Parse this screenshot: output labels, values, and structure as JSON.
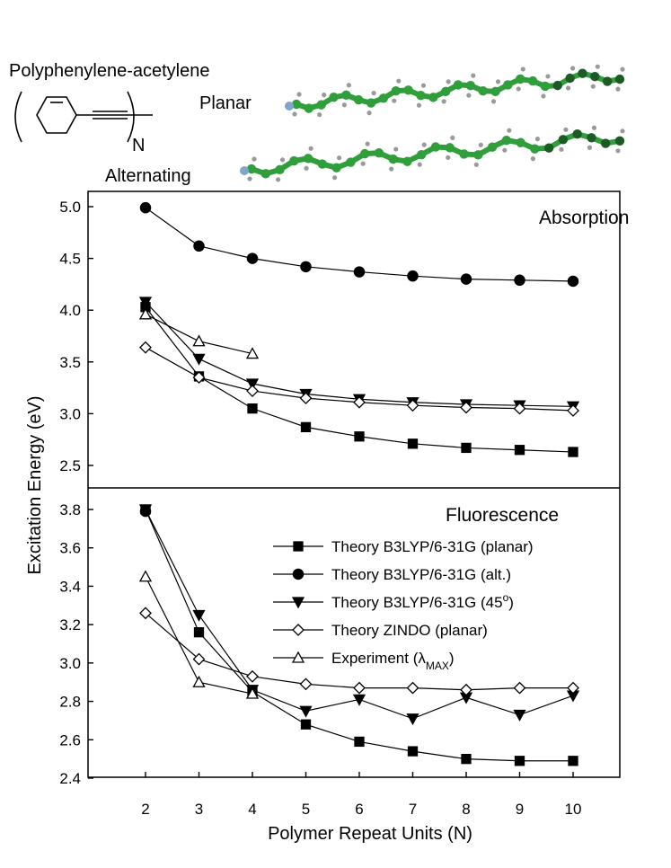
{
  "header": {
    "polymer_name": "Polyphenylene-acetylene",
    "repeat_label": "N",
    "planar_label": "Planar",
    "alternating_label": "Alternating"
  },
  "colors": {
    "molecule_green": "#2f9e3b",
    "molecule_dark_green": "#1d5a26",
    "hydrogen_grey": "#9a9a9a",
    "end_group_blue": "#7fa6c9"
  },
  "chart_data": [
    {
      "type": "line",
      "title": "Absorption",
      "xlabel": "Polymer Repeat Units (N)",
      "ylabel": "Excitation Energy (eV)",
      "xlim": [
        1.1,
        10.8
      ],
      "ylim": [
        2.3,
        5.1
      ],
      "yticks": [
        "2.5",
        "3.0",
        "3.5",
        "4.0",
        "4.5",
        "5.0"
      ],
      "grid": false,
      "series": [
        {
          "name": "Theory B3LYP/6-31G (planar)",
          "marker": "square-filled",
          "x": [
            2,
            3,
            4,
            5,
            6,
            7,
            8,
            9,
            10
          ],
          "y": [
            4.03,
            3.36,
            3.05,
            2.87,
            2.78,
            2.71,
            2.67,
            2.65,
            2.63
          ]
        },
        {
          "name": "Theory B3LYP/6-31G (alt.)",
          "marker": "circle-filled",
          "x": [
            2,
            3,
            4,
            5,
            6,
            7,
            8,
            9,
            10
          ],
          "y": [
            4.99,
            4.62,
            4.5,
            4.42,
            4.37,
            4.33,
            4.3,
            4.29,
            4.28
          ]
        },
        {
          "name": "Theory B3LYP/6-31G (45°)",
          "marker": "triangle-down-filled",
          "x": [
            2,
            3,
            4,
            5,
            6,
            7,
            8,
            9,
            10
          ],
          "y": [
            4.08,
            3.53,
            3.29,
            3.19,
            3.14,
            3.11,
            3.09,
            3.08,
            3.07
          ]
        },
        {
          "name": "Theory ZINDO (planar)",
          "marker": "diamond-open",
          "x": [
            2,
            3,
            4,
            5,
            6,
            7,
            8,
            9,
            10
          ],
          "y": [
            3.64,
            3.35,
            3.22,
            3.15,
            3.11,
            3.08,
            3.06,
            3.05,
            3.03
          ]
        },
        {
          "name": "Experiment (λMAX)",
          "marker": "triangle-up-open",
          "x": [
            2,
            3,
            4
          ],
          "y": [
            3.96,
            3.7,
            3.58
          ]
        }
      ]
    },
    {
      "type": "line",
      "title": "Fluorescence",
      "xlabel": "Polymer Repeat Units (N)",
      "ylabel": "Excitation Energy (eV)",
      "xlim": [
        1.1,
        10.8
      ],
      "ylim": [
        2.4,
        3.88
      ],
      "xticks": [
        "2",
        "3",
        "4",
        "5",
        "6",
        "7",
        "8",
        "9",
        "10"
      ],
      "yticks": [
        "2.4",
        "2.6",
        "2.8",
        "3.0",
        "3.2",
        "3.4",
        "3.6",
        "3.8"
      ],
      "grid": false,
      "legend_position": "right",
      "series": [
        {
          "name": "Theory B3LYP/6-31G (planar)",
          "marker": "square-filled",
          "x": [
            2,
            3,
            4,
            5,
            6,
            7,
            8,
            9,
            10
          ],
          "y": [
            3.8,
            3.16,
            2.85,
            2.68,
            2.59,
            2.54,
            2.5,
            2.49,
            2.49
          ]
        },
        {
          "name": "Theory B3LYP/6-31G (alt.)",
          "marker": "circle-filled",
          "x": [
            2
          ],
          "y": [
            3.79
          ]
        },
        {
          "name": "Theory B3LYP/6-31G (45°)",
          "marker": "triangle-down-filled",
          "x": [
            2,
            3,
            4,
            5,
            6,
            7,
            8,
            9,
            10
          ],
          "y": [
            3.8,
            3.25,
            2.86,
            2.75,
            2.81,
            2.71,
            2.82,
            2.73,
            2.83
          ]
        },
        {
          "name": "Theory ZINDO (planar)",
          "marker": "diamond-open",
          "x": [
            2,
            3,
            4,
            5,
            6,
            7,
            8,
            9,
            10
          ],
          "y": [
            3.26,
            3.02,
            2.93,
            2.89,
            2.87,
            2.87,
            2.86,
            2.87,
            2.87
          ]
        },
        {
          "name": "Experiment (λMAX)",
          "marker": "triangle-up-open",
          "x": [
            2,
            3,
            4
          ],
          "y": [
            3.45,
            2.9,
            2.84
          ]
        }
      ]
    }
  ],
  "legend": {
    "items": [
      {
        "label": "Theory B3LYP/6-31G (planar)",
        "marker": "square-filled"
      },
      {
        "label": "Theory B3LYP/6-31G (alt.)",
        "marker": "circle-filled"
      },
      {
        "label": "Theory B3LYP/6-31G (45",
        "suffix": ")",
        "sup": "o",
        "marker": "triangle-down-filled"
      },
      {
        "label": "Theory ZINDO (planar)",
        "marker": "diamond-open"
      },
      {
        "label": "Experiment (λ",
        "sub": "MAX",
        "suffix": ")",
        "marker": "triangle-up-open"
      }
    ]
  }
}
